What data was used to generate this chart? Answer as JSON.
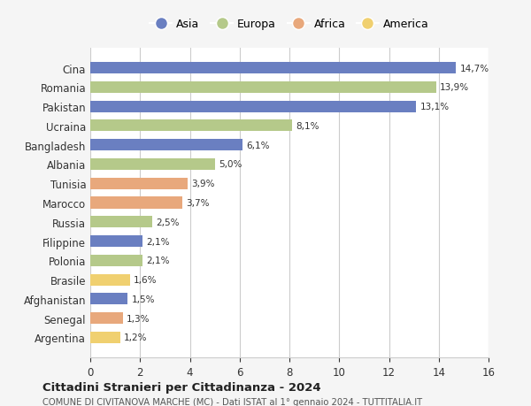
{
  "categories": [
    "Cina",
    "Romania",
    "Pakistan",
    "Ucraina",
    "Bangladesh",
    "Albania",
    "Tunisia",
    "Marocco",
    "Russia",
    "Filippine",
    "Polonia",
    "Brasile",
    "Afghanistan",
    "Senegal",
    "Argentina"
  ],
  "values": [
    14.7,
    13.9,
    13.1,
    8.1,
    6.1,
    5.0,
    3.9,
    3.7,
    2.5,
    2.1,
    2.1,
    1.6,
    1.5,
    1.3,
    1.2
  ],
  "labels": [
    "14,7%",
    "13,9%",
    "13,1%",
    "8,1%",
    "6,1%",
    "5,0%",
    "3,9%",
    "3,7%",
    "2,5%",
    "2,1%",
    "2,1%",
    "1,6%",
    "1,5%",
    "1,3%",
    "1,2%"
  ],
  "colors": [
    "#6a7fc1",
    "#b5c98a",
    "#6a7fc1",
    "#b5c98a",
    "#6a7fc1",
    "#b5c98a",
    "#e8a87c",
    "#e8a87c",
    "#b5c98a",
    "#6a7fc1",
    "#b5c98a",
    "#f0d070",
    "#6a7fc1",
    "#e8a87c",
    "#f0d070"
  ],
  "legend_labels": [
    "Asia",
    "Europa",
    "Africa",
    "America"
  ],
  "legend_colors": [
    "#6a7fc1",
    "#b5c98a",
    "#e8a87c",
    "#f0d070"
  ],
  "xlim": [
    0,
    16
  ],
  "xticks": [
    0,
    2,
    4,
    6,
    8,
    10,
    12,
    14,
    16
  ],
  "title": "Cittadini Stranieri per Cittadinanza - 2024",
  "subtitle": "COMUNE DI CIVITANOVA MARCHE (MC) - Dati ISTAT al 1° gennaio 2024 - TUTTITALIA.IT",
  "background_color": "#f5f5f5",
  "plot_bg_color": "#ffffff",
  "grid_color": "#cccccc",
  "bar_height": 0.6
}
